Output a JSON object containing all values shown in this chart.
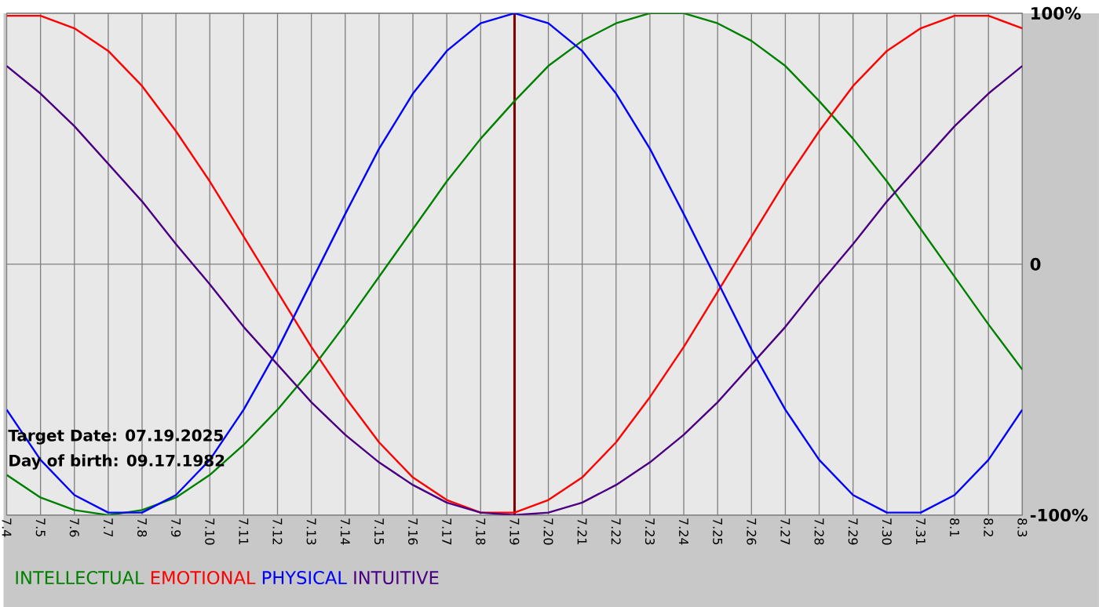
{
  "chart_data": {
    "type": "line",
    "categories": [
      "7.4",
      "7.5",
      "7.6",
      "7.7",
      "7.8",
      "7.9",
      "7.10",
      "7.11",
      "7.12",
      "7.13",
      "7.14",
      "7.15",
      "7.16",
      "7.17",
      "7.18",
      "7.19",
      "7.20",
      "7.21",
      "7.22",
      "7.23",
      "7.24",
      "7.25",
      "7.26",
      "7.27",
      "7.28",
      "7.29",
      "7.30",
      "7.31",
      "8.1",
      "8.2",
      "8.3"
    ],
    "series": [
      {
        "name": "INTELLECTUAL",
        "color": "#008000",
        "values": [
          -84,
          -93,
          -98,
          -100,
          -98,
          -93,
          -84,
          -72,
          -58,
          -42,
          -24,
          -5,
          14,
          33,
          50,
          65,
          79,
          89,
          96,
          100,
          100,
          96,
          89,
          79,
          65,
          50,
          33,
          14,
          -5,
          -24,
          -42
        ]
      },
      {
        "name": "EMOTIONAL",
        "color": "#ff0000",
        "values": [
          99,
          99,
          94,
          85,
          71,
          53,
          33,
          11,
          -11,
          -33,
          -53,
          -71,
          -85,
          -94,
          -99,
          -99,
          -94,
          -85,
          -71,
          -53,
          -33,
          -11,
          11,
          33,
          53,
          71,
          85,
          94,
          99,
          99,
          94
        ]
      },
      {
        "name": "PHYSICAL",
        "color": "#0000ff",
        "values": [
          -58,
          -78,
          -92,
          -99,
          -99,
          -92,
          -78,
          -58,
          -34,
          -7,
          20,
          46,
          68,
          85,
          96,
          100,
          96,
          85,
          68,
          46,
          20,
          -7,
          -34,
          -58,
          -78,
          -92,
          -99,
          -99,
          -92,
          -78,
          -58
        ]
      },
      {
        "name": "INTUITIVE",
        "color": "#4b0082",
        "values": [
          79,
          68,
          55,
          40,
          25,
          8,
          -8,
          -25,
          -40,
          -55,
          -68,
          -79,
          -88,
          -95,
          -99,
          -100,
          -99,
          -95,
          -88,
          -79,
          -68,
          -55,
          -40,
          -25,
          -8,
          8,
          25,
          40,
          55,
          68,
          79
        ]
      }
    ],
    "ylim": [
      -100,
      100
    ],
    "yticks": [
      {
        "value": 100,
        "label": "100%"
      },
      0,
      {
        "value": -100,
        "label": "-100%"
      }
    ],
    "ref_lines": [
      {
        "axis": "x",
        "value": "7.19",
        "color": "#800000"
      }
    ],
    "annotations": [
      "Target Date: 07.19.2025",
      "Day of birth: 09.17.1982"
    ],
    "grid": true,
    "legend": "bottom",
    "marker": "none",
    "line_style": "solid"
  }
}
